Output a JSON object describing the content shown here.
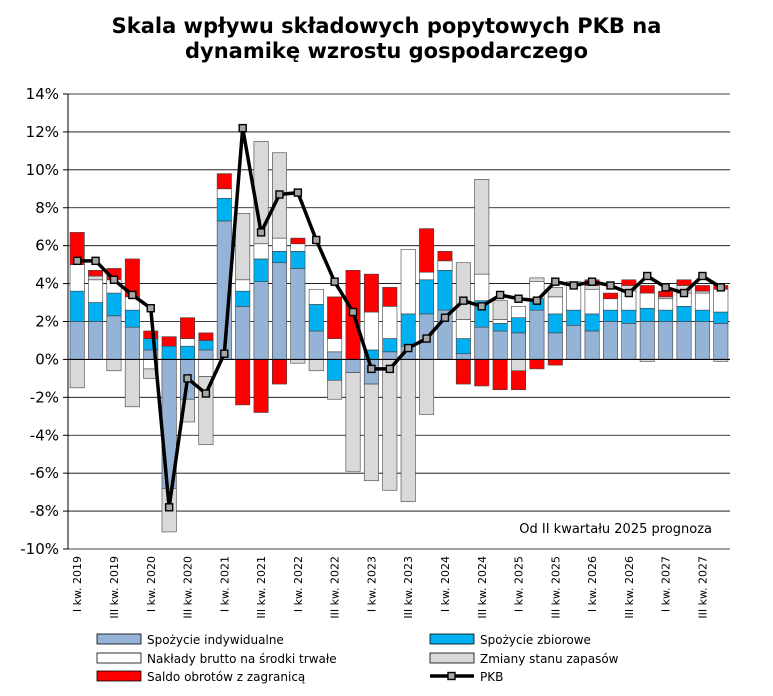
{
  "chart_data": {
    "type": "bar",
    "title": [
      "Skala wpływu składowych popytowych PKB na",
      "dynamikę wzrostu gospodarczego"
    ],
    "annotation": "Od II kwartału 2025 prognoza",
    "ylim": [
      -10,
      14
    ],
    "yticks": [
      "-10%",
      "-8%",
      "-6%",
      "-4%",
      "-2%",
      "0%",
      "2%",
      "4%",
      "6%",
      "8%",
      "10%",
      "12%",
      "14%"
    ],
    "ytick_values": [
      -10,
      -8,
      -6,
      -4,
      -2,
      0,
      2,
      4,
      6,
      8,
      10,
      12,
      14
    ],
    "grid": true,
    "categories": [
      "I kw. 2019",
      "II kw. 2019",
      "III kw. 2019",
      "IV kw. 2019",
      "I kw. 2020",
      "II kw. 2020",
      "III kw. 2020",
      "IV kw. 2020",
      "I kw. 2021",
      "II kw. 2021",
      "III kw. 2021",
      "IV kw. 2021",
      "I kw. 2022",
      "II kw. 2022",
      "III kw. 2022",
      "IV kw. 2022",
      "I kw. 2023",
      "II kw. 2023",
      "III kw. 2023",
      "IV kw. 2023",
      "I kw. 2024",
      "II kw. 2024",
      "III kw. 2024",
      "IV kw. 2024",
      "I kw. 2025",
      "II kw. 2025",
      "III kw. 2025",
      "IV kw. 2025",
      "I kw. 2026",
      "II kw. 2026",
      "III kw. 2026",
      "IV kw. 2026",
      "I kw. 2027",
      "II kw. 2027",
      "III kw. 2027",
      "IV kw. 2027"
    ],
    "category_labels": [
      "I kw. 2019",
      "III kw. 2019",
      "I kw. 2020",
      "III kw. 2020",
      "I kw. 2021",
      "III kw. 2021",
      "I kw. 2022",
      "III kw. 2022",
      "I kw. 2023",
      "III kw. 2023",
      "I kw. 2024",
      "III kw. 2024",
      "I kw. 2025",
      "III kw. 2025",
      "I kw. 2026",
      "III kw. 2026",
      "I kw. 2027",
      "III kw. 2027"
    ],
    "series": [
      {
        "name": "Spożycie indywidualne",
        "color": "#95B3D7",
        "values": [
          2.0,
          2.0,
          2.3,
          1.7,
          0.5,
          -6.8,
          -2.1,
          0.5,
          7.3,
          2.8,
          4.1,
          5.1,
          4.8,
          1.5,
          0.4,
          -0.7,
          -1.3,
          0.4,
          0.7,
          2.4,
          2.6,
          0.3,
          1.7,
          1.5,
          1.4,
          2.6,
          1.4,
          1.8,
          1.5,
          2.0,
          1.9,
          2.0,
          2.0,
          2.0,
          2.0,
          1.9
        ]
      },
      {
        "name": "Spożycie zbiorowe",
        "color": "#00B0F0",
        "values": [
          1.6,
          1.0,
          1.2,
          0.9,
          0.6,
          0.7,
          0.7,
          0.5,
          1.2,
          0.8,
          1.2,
          0.6,
          0.9,
          1.4,
          -1.1,
          0.0,
          0.5,
          0.7,
          1.7,
          1.8,
          2.1,
          0.8,
          1.4,
          0.4,
          0.8,
          0.6,
          1.0,
          0.8,
          0.9,
          0.6,
          0.7,
          0.7,
          0.6,
          0.8,
          0.6,
          0.6
        ]
      },
      {
        "name": "Nakłady brutto na środki trwałe",
        "color": "#FFFFFF",
        "values": [
          1.4,
          1.2,
          0.7,
          0.7,
          -0.5,
          0.0,
          0.4,
          -0.9,
          0.5,
          0.6,
          0.8,
          0.7,
          0.4,
          0.8,
          0.7,
          0.0,
          2.0,
          1.7,
          3.4,
          0.4,
          0.5,
          1.0,
          1.4,
          0.2,
          0.6,
          0.9,
          0.9,
          1.3,
          1.3,
          0.6,
          1.0,
          0.8,
          0.6,
          0.7,
          0.9,
          1.2
        ]
      },
      {
        "name": "Zmiany stanu zapasów",
        "color": "#D9D9D9",
        "values": [
          -1.5,
          0.2,
          -0.6,
          -2.5,
          -0.5,
          -2.3,
          -1.2,
          -3.6,
          0.0,
          3.5,
          5.4,
          4.5,
          -0.2,
          -0.6,
          -1.0,
          -5.2,
          -5.1,
          -6.9,
          -7.5,
          -2.9,
          0.0,
          3.0,
          5.0,
          1.0,
          -0.6,
          0.2,
          0.5,
          0.2,
          0.2,
          0.0,
          0.3,
          -0.1,
          0.1,
          0.4,
          0.1,
          -0.1
        ]
      },
      {
        "name": "Saldo obrotów  z zagranicą",
        "color": "#FF0000",
        "values": [
          1.7,
          0.3,
          0.6,
          2.0,
          0.4,
          0.5,
          1.1,
          0.4,
          0.8,
          -2.4,
          -2.8,
          -1.3,
          0.3,
          0.0,
          2.2,
          4.7,
          2.0,
          1.0,
          0.0,
          2.3,
          0.5,
          -1.3,
          -1.4,
          -1.6,
          -1.0,
          -0.5,
          -0.3,
          0.0,
          0.3,
          0.3,
          0.3,
          0.4,
          0.3,
          0.3,
          0.3,
          0.2
        ]
      },
      {
        "name": "PKB",
        "color": "#000000",
        "type": "line",
        "values": [
          5.2,
          5.2,
          4.2,
          3.4,
          2.7,
          -7.8,
          -1.0,
          -1.8,
          0.3,
          12.2,
          6.7,
          8.7,
          8.8,
          6.3,
          4.1,
          2.5,
          -0.5,
          -0.5,
          0.6,
          1.1,
          2.2,
          3.1,
          2.8,
          3.4,
          3.2,
          3.1,
          4.1,
          3.9,
          4.1,
          3.9,
          3.5,
          4.4,
          3.8,
          3.5,
          4.4,
          3.8
        ]
      }
    ]
  }
}
